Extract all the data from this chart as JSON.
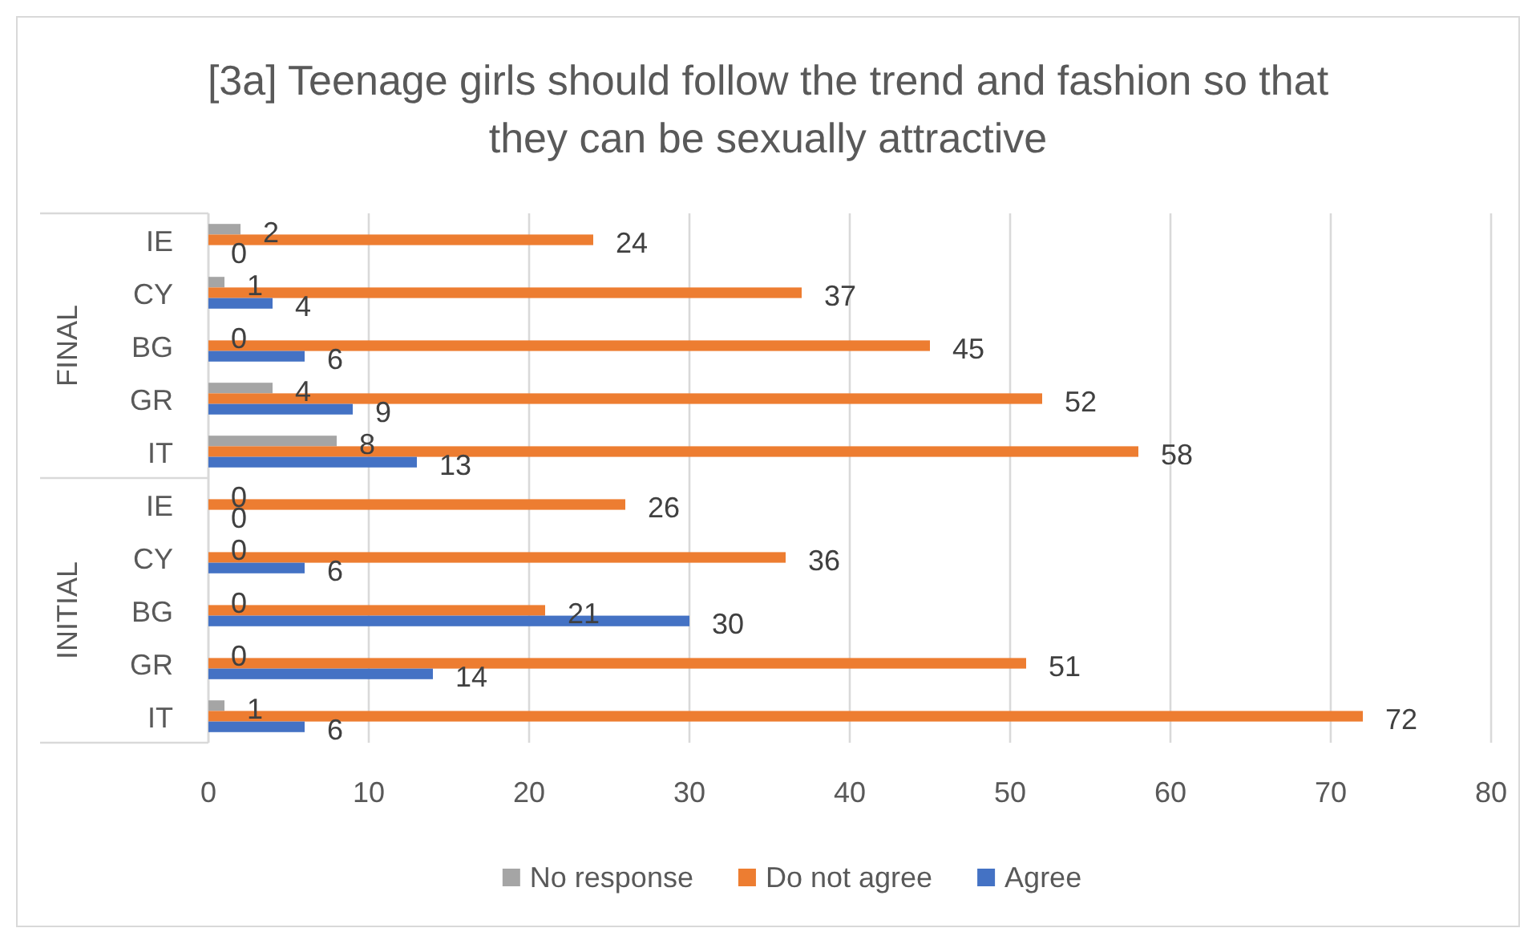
{
  "chart_data": {
    "type": "bar",
    "orientation": "horizontal",
    "title": "[3a] Teenage girls should follow the trend and fashion so that they can be sexually attractive",
    "categories": [
      "IE",
      "CY",
      "BG",
      "GR",
      "IT",
      "IE",
      "CY",
      "BG",
      "GR",
      "IT"
    ],
    "annotations": [
      "FINAL",
      "INITIAL"
    ],
    "series": [
      {
        "name": "No response",
        "color": "#a5a5a5",
        "values": [
          2,
          1,
          0,
          4,
          8,
          0,
          0,
          0,
          0,
          1
        ]
      },
      {
        "name": "Do not agree",
        "color": "#ed7d31",
        "values": [
          24,
          37,
          45,
          52,
          58,
          26,
          36,
          21,
          51,
          72
        ]
      },
      {
        "name": "Agree",
        "color": "#4472c4",
        "values": [
          0,
          4,
          6,
          9,
          13,
          0,
          6,
          30,
          14,
          6
        ]
      }
    ],
    "xlim": [
      0,
      80
    ],
    "xticks": [
      0,
      10,
      20,
      30,
      40,
      50,
      60,
      70,
      80
    ],
    "grid": "x",
    "legend": "bottom",
    "data_labels": true
  }
}
